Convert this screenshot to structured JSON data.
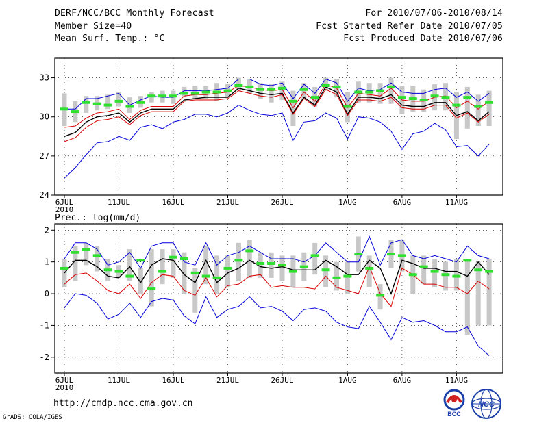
{
  "header": {
    "title": "DERF/NCC/BCC Monthly Forecast",
    "member_size": "Member Size=40",
    "variable1": "Mean Surf. Temp.: °C",
    "period": "For 2010/07/06-2010/08/14",
    "started": "Fcst Started Refer Date 2010/07/05",
    "produced": "Fcst Produced Date 2010/07/06"
  },
  "footer": {
    "url": "http://cmdp.ncc.cma.gov.cn",
    "grads": "GrADS: COLA/IGES",
    "logo_bcc": "BCC",
    "logo_ncc": "NCC"
  },
  "colors": {
    "max_line": "#0000d8",
    "min_line": "#0000d8",
    "mean_line": "#000000",
    "ensemble_line": "#d80000",
    "marker": "#30e030",
    "box": "#c8c8c8"
  },
  "chart_data": [
    {
      "type": "line",
      "title": "Mean Surf. Temp.: °C",
      "x_unit": "day index (0 = 6JUL 2010)",
      "xticks": [
        {
          "x": 0,
          "label": "6JUL",
          "sub": "2010"
        },
        {
          "x": 5,
          "label": "11JUL"
        },
        {
          "x": 10,
          "label": "16JUL"
        },
        {
          "x": 15,
          "label": "21JUL"
        },
        {
          "x": 20,
          "label": "26JUL"
        },
        {
          "x": 26,
          "label": "1AUG"
        },
        {
          "x": 31,
          "label": "6AUG"
        },
        {
          "x": 36,
          "label": "11AUG"
        }
      ],
      "ylim": [
        24,
        34.5
      ],
      "yticks": [
        24,
        27,
        30,
        33
      ],
      "series": [
        {
          "name": "max",
          "color": "#0000d8",
          "values": [
            30.6,
            30.6,
            31.4,
            31.4,
            31.6,
            31.8,
            30.9,
            31.3,
            31.6,
            31.5,
            31.5,
            32.0,
            32.0,
            32.0,
            32.1,
            32.2,
            32.9,
            32.9,
            32.5,
            32.4,
            32.6,
            31.4,
            32.5,
            31.8,
            32.9,
            32.6,
            31.2,
            32.2,
            32.0,
            32.1,
            32.6,
            31.9,
            31.8,
            31.8,
            32.1,
            32.2,
            31.5,
            31.9,
            31.2,
            31.8
          ]
        },
        {
          "name": "ensemble",
          "color": "#d80000",
          "values": [
            29.2,
            29.3,
            29.9,
            30.3,
            30.4,
            30.6,
            29.8,
            30.5,
            30.8,
            30.8,
            30.8,
            31.6,
            31.7,
            31.7,
            31.8,
            31.9,
            32.4,
            32.3,
            32.1,
            32.0,
            32.1,
            30.7,
            31.9,
            31.2,
            32.5,
            32.2,
            30.7,
            31.8,
            31.7,
            31.6,
            32.2,
            31.3,
            31.2,
            31.2,
            31.5,
            31.6,
            30.7,
            31.2,
            30.6,
            31.2
          ]
        },
        {
          "name": "mean",
          "color": "#000000",
          "values": [
            28.5,
            28.8,
            29.6,
            30.0,
            30.1,
            30.3,
            29.6,
            30.3,
            30.6,
            30.6,
            30.6,
            31.3,
            31.4,
            31.5,
            31.5,
            31.5,
            32.2,
            32.0,
            31.8,
            31.7,
            31.8,
            30.3,
            31.5,
            30.9,
            32.3,
            31.9,
            30.2,
            31.5,
            31.5,
            31.4,
            31.7,
            30.9,
            30.8,
            30.8,
            31.1,
            31.1,
            30.1,
            30.4,
            29.7,
            30.4
          ]
        },
        {
          "name": "ensemble2",
          "color": "#d80000",
          "values": [
            28.1,
            28.4,
            29.2,
            29.7,
            29.8,
            30.0,
            29.4,
            30.1,
            30.4,
            30.4,
            30.4,
            31.2,
            31.3,
            31.3,
            31.3,
            31.4,
            32.0,
            31.8,
            31.6,
            31.5,
            31.7,
            30.2,
            31.4,
            30.8,
            32.1,
            31.7,
            30.1,
            31.3,
            31.3,
            31.2,
            31.5,
            30.7,
            30.6,
            30.6,
            30.9,
            30.9,
            29.9,
            30.3,
            29.6,
            30.2
          ]
        },
        {
          "name": "min",
          "color": "#0000d8",
          "values": [
            25.3,
            26.1,
            27.1,
            28.0,
            28.1,
            28.5,
            28.2,
            29.2,
            29.4,
            29.1,
            29.6,
            29.8,
            30.2,
            30.2,
            30.0,
            30.3,
            30.9,
            30.5,
            30.2,
            30.1,
            30.3,
            28.2,
            29.6,
            29.7,
            30.3,
            29.9,
            28.3,
            30.0,
            29.9,
            29.6,
            28.9,
            27.5,
            28.7,
            28.9,
            29.5,
            29.0,
            27.7,
            27.8,
            27.0,
            27.9
          ]
        }
      ],
      "markers": [
        30.6,
        30.4,
        31.1,
        31.0,
        30.9,
        31.2,
        30.8,
        31.1,
        31.6,
        31.6,
        31.6,
        31.8,
        31.8,
        31.9,
        31.9,
        32.0,
        32.4,
        32.3,
        32.1,
        32.1,
        32.2,
        31.2,
        32.1,
        31.5,
        32.4,
        32.3,
        30.8,
        31.9,
        31.9,
        32.0,
        32.3,
        31.5,
        31.4,
        31.3,
        31.6,
        31.5,
        30.9,
        31.5,
        30.8,
        31.1
      ],
      "boxes": [
        [
          29.3,
          31.8
        ],
        [
          29.6,
          31.2
        ],
        [
          30.3,
          31.6
        ],
        [
          30.5,
          31.6
        ],
        [
          30.6,
          31.7
        ],
        [
          30.8,
          31.9
        ],
        [
          30.3,
          31.5
        ],
        [
          30.7,
          31.6
        ],
        [
          31.1,
          31.9
        ],
        [
          31.1,
          32.0
        ],
        [
          31.0,
          32.0
        ],
        [
          31.5,
          32.3
        ],
        [
          31.4,
          32.4
        ],
        [
          31.4,
          32.4
        ],
        [
          31.2,
          32.6
        ],
        [
          31.5,
          32.5
        ],
        [
          32.0,
          33.0
        ],
        [
          31.8,
          32.9
        ],
        [
          31.4,
          32.6
        ],
        [
          31.1,
          32.5
        ],
        [
          31.3,
          32.7
        ],
        [
          29.3,
          32.0
        ],
        [
          31.4,
          32.6
        ],
        [
          30.8,
          32.3
        ],
        [
          32.0,
          33.0
        ],
        [
          31.5,
          32.9
        ],
        [
          29.6,
          31.9
        ],
        [
          31.1,
          32.7
        ],
        [
          31.1,
          32.6
        ],
        [
          31.0,
          32.6
        ],
        [
          31.0,
          33.0
        ],
        [
          30.2,
          32.4
        ],
        [
          30.4,
          32.4
        ],
        [
          30.4,
          32.1
        ],
        [
          30.5,
          32.5
        ],
        [
          30.5,
          32.6
        ],
        [
          28.3,
          31.9
        ],
        [
          29.1,
          32.3
        ],
        [
          29.3,
          31.7
        ],
        [
          29.3,
          32.0
        ]
      ]
    },
    {
      "type": "line",
      "title": "Prec.: log(mm/d)",
      "x_unit": "day index (0 = 6JUL 2010)",
      "xticks": [
        {
          "x": 0,
          "label": "6JUL",
          "sub": "2010"
        },
        {
          "x": 5,
          "label": "11JUL"
        },
        {
          "x": 10,
          "label": "16JUL"
        },
        {
          "x": 15,
          "label": "21JUL"
        },
        {
          "x": 20,
          "label": "26JUL"
        },
        {
          "x": 26,
          "label": "1AUG"
        },
        {
          "x": 31,
          "label": "6AUG"
        },
        {
          "x": 36,
          "label": "11AUG"
        }
      ],
      "ylim": [
        -2.5,
        2.2
      ],
      "yticks": [
        -2,
        -1,
        0,
        1,
        2
      ],
      "series": [
        {
          "name": "max",
          "color": "#0000d8",
          "values": [
            1.1,
            1.6,
            1.6,
            1.4,
            0.9,
            1.0,
            1.3,
            0.8,
            1.5,
            1.6,
            1.6,
            1.0,
            0.9,
            1.6,
            0.9,
            1.2,
            1.3,
            1.5,
            1.3,
            1.1,
            1.1,
            1.1,
            1.0,
            1.2,
            1.6,
            1.3,
            1.0,
            1.0,
            1.8,
            0.9,
            1.6,
            1.7,
            1.2,
            1.1,
            1.2,
            1.1,
            1.0,
            1.5,
            1.2,
            1.1
          ]
        },
        {
          "name": "mean",
          "color": "#000000",
          "values": [
            0.65,
            1.05,
            1.05,
            0.85,
            0.55,
            0.5,
            0.85,
            0.35,
            0.9,
            1.1,
            1.05,
            0.6,
            0.35,
            1.05,
            0.35,
            0.65,
            0.8,
            1.05,
            0.85,
            0.8,
            0.85,
            0.75,
            0.75,
            0.75,
            1.05,
            0.85,
            0.6,
            0.6,
            1.05,
            0.8,
            0.0,
            1.05,
            0.95,
            0.8,
            0.8,
            0.7,
            0.7,
            0.55,
            1.0,
            0.6
          ]
        },
        {
          "name": "ensemble",
          "color": "#d80000",
          "values": [
            0.3,
            0.6,
            0.65,
            0.4,
            0.1,
            0.0,
            0.3,
            -0.15,
            0.35,
            0.6,
            0.55,
            0.1,
            -0.05,
            0.5,
            -0.1,
            0.25,
            0.3,
            0.55,
            0.6,
            0.2,
            0.25,
            0.2,
            0.2,
            0.15,
            0.55,
            0.2,
            0.1,
            0.0,
            0.85,
            0.0,
            -0.4,
            0.8,
            0.6,
            0.3,
            0.3,
            0.2,
            0.2,
            0.0,
            0.4,
            0.15
          ]
        },
        {
          "name": "min",
          "color": "#0000d8",
          "values": [
            -0.45,
            0.0,
            -0.05,
            -0.3,
            -0.8,
            -0.65,
            -0.3,
            -0.75,
            -0.25,
            -0.15,
            -0.2,
            -0.7,
            -0.95,
            -0.1,
            -0.75,
            -0.5,
            -0.4,
            -0.1,
            -0.45,
            -0.4,
            -0.55,
            -0.85,
            -0.5,
            -0.45,
            -0.55,
            -0.9,
            -1.05,
            -1.1,
            -0.4,
            -0.9,
            -1.45,
            -0.75,
            -0.9,
            -0.85,
            -1.0,
            -1.2,
            -1.2,
            -1.05,
            -1.65,
            -1.95
          ]
        }
      ],
      "markers": [
        0.8,
        1.3,
        1.4,
        1.2,
        0.75,
        0.7,
        0.55,
        1.05,
        0.15,
        0.7,
        1.15,
        1.1,
        0.65,
        0.55,
        0.5,
        0.8,
        1.05,
        1.35,
        0.95,
        0.95,
        0.9,
        0.7,
        0.85,
        1.2,
        0.75,
        0.5,
        0.55,
        1.25,
        0.8,
        -0.05,
        1.25,
        1.2,
        0.6,
        0.85,
        0.7,
        0.6,
        0.55,
        1.05,
        0.75,
        0.7
      ],
      "boxes": [
        [
          0.2,
          1.1
        ],
        [
          0.4,
          1.5
        ],
        [
          0.9,
          1.6
        ],
        [
          0.7,
          1.5
        ],
        [
          0.4,
          1.1
        ],
        [
          0.5,
          0.9
        ],
        [
          0.4,
          1.4
        ],
        [
          0.0,
          0.8
        ],
        [
          -0.4,
          1.4
        ],
        [
          0.3,
          1.4
        ],
        [
          0.5,
          1.4
        ],
        [
          0.0,
          1.3
        ],
        [
          -0.6,
          0.8
        ],
        [
          0.3,
          1.5
        ],
        [
          0.0,
          1.2
        ],
        [
          0.2,
          1.2
        ],
        [
          0.4,
          1.6
        ],
        [
          0.5,
          1.7
        ],
        [
          0.5,
          1.3
        ],
        [
          0.5,
          1.3
        ],
        [
          0.4,
          1.2
        ],
        [
          0.2,
          1.2
        ],
        [
          0.4,
          1.3
        ],
        [
          0.6,
          1.6
        ],
        [
          0.2,
          1.2
        ],
        [
          0.1,
          1.0
        ],
        [
          0.0,
          1.0
        ],
        [
          0.7,
          1.8
        ],
        [
          0.2,
          1.2
        ],
        [
          -0.5,
          0.3
        ],
        [
          0.8,
          1.7
        ],
        [
          0.7,
          1.7
        ],
        [
          0.0,
          1.2
        ],
        [
          0.3,
          1.2
        ],
        [
          0.2,
          1.1
        ],
        [
          0.1,
          1.0
        ],
        [
          0.1,
          1.1
        ],
        [
          -1.3,
          1.1
        ],
        [
          -1.0,
          1.0
        ],
        [
          -1.0,
          1.1
        ]
      ]
    }
  ]
}
